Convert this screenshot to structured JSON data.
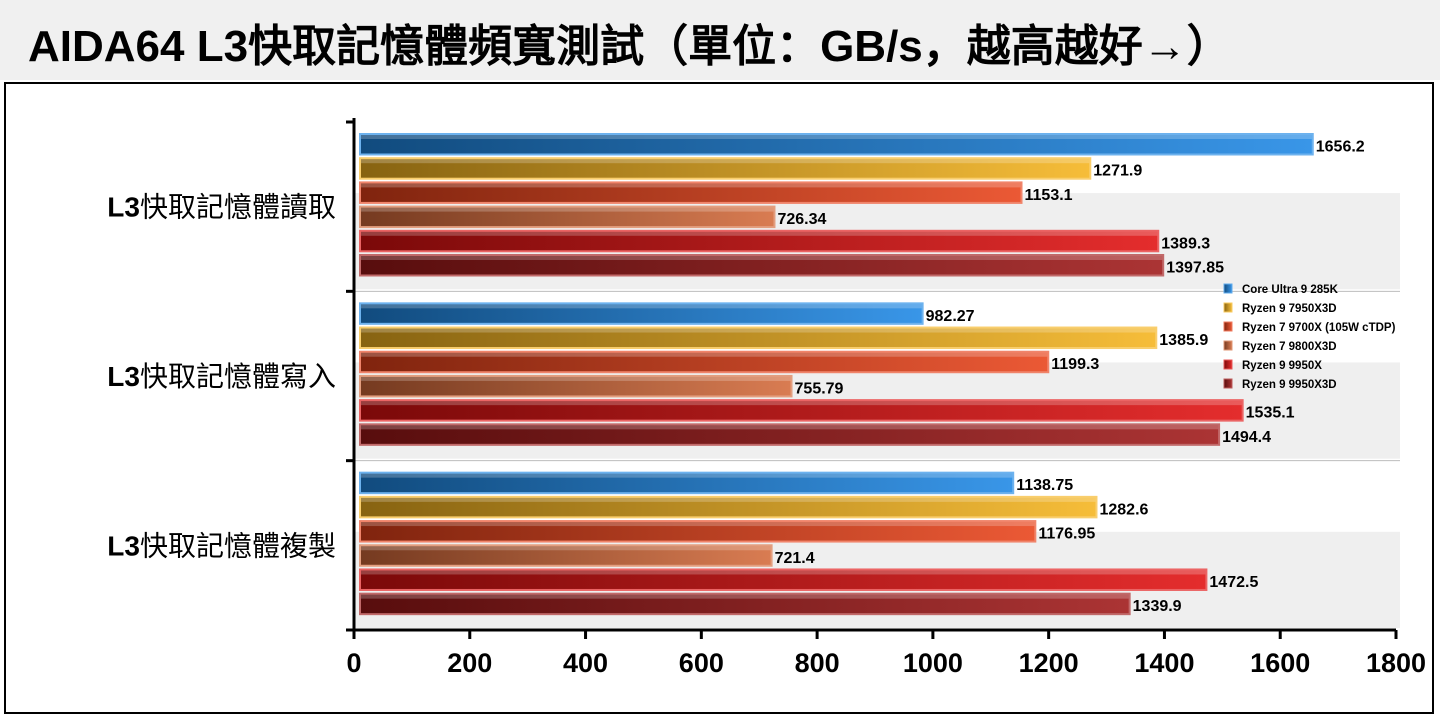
{
  "title": "AIDA64 L3快取記憶體頻寬測試（單位：GB/s，越高越好→）",
  "chart_data": {
    "type": "bar",
    "orientation": "horizontal",
    "categories": [
      "L3快取記憶體讀取",
      "L3快取記憶體寫入",
      "L3快取記憶體複製"
    ],
    "series": [
      {
        "name": "Core Ultra 9 285K",
        "color": "#1e88e5",
        "values": [
          1656.2,
          982.27,
          1138.75
        ],
        "labels": [
          "1656.2",
          "982.27",
          "1138.75"
        ]
      },
      {
        "name": "Ryzen 9 7950X3D",
        "color": "#f5b41e",
        "values": [
          1271.9,
          1385.9,
          1282.6
        ],
        "labels": [
          "1271.9",
          "1385.9",
          "1282.6"
        ]
      },
      {
        "name": "Ryzen 7 9700X (105W cTDP)",
        "color": "#e8421a",
        "values": [
          1153.1,
          1199.3,
          1176.95
        ],
        "labels": [
          "1153.1",
          "1199.3",
          "1176.95"
        ]
      },
      {
        "name": "Ryzen 7 9800X3D",
        "color": "#d46a3a",
        "values": [
          726.34,
          755.79,
          721.4
        ],
        "labels": [
          "726.34",
          "755.79",
          "721.4"
        ]
      },
      {
        "name": "Ryzen 9 9950X",
        "color": "#e01010",
        "values": [
          1389.3,
          1535.1,
          1472.5
        ],
        "labels": [
          "1389.3",
          "1535.1",
          "1472.5"
        ]
      },
      {
        "name": "Ryzen 9 9950X3D",
        "color": "#a01818",
        "values": [
          1397.85,
          1494.4,
          1339.9
        ],
        "labels": [
          "1397.85",
          "1494.4",
          "1339.9"
        ]
      }
    ],
    "xlim": [
      0,
      1800
    ],
    "xticks": [
      0,
      200,
      400,
      600,
      800,
      1000,
      1200,
      1400,
      1600,
      1800
    ],
    "xlabel": "",
    "ylabel": "",
    "legend_position": "right"
  }
}
